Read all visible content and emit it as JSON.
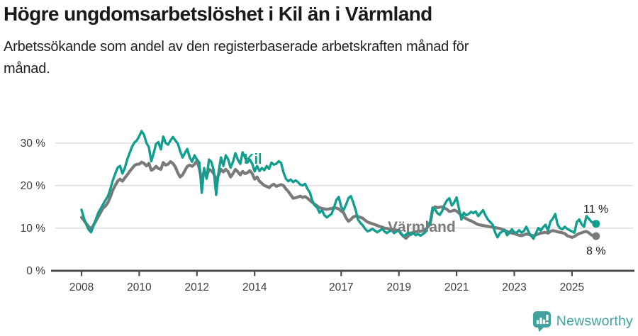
{
  "header": {
    "title": "Högre ungdomsarbetslöshet i Kil än i Värmland",
    "subtitle_lines": [
      "Arbetssökande som andel av den registerbaserade arbetskraften månad för",
      "månad."
    ]
  },
  "colors": {
    "kil": "#129e8f",
    "varmland": "#7a7a7a",
    "grid": "#d9d9d9",
    "axis": "#4d4d4d",
    "axis_text": "#3d3d3d",
    "end_label_text": "#1a1a1a",
    "brand": "#41a39e"
  },
  "chart_data": {
    "type": "line",
    "title": "Högre ungdomsarbetslöshet i Kil än i Värmland",
    "subtitle": "Arbetssökande som andel av den registerbaserade arbetskraften månad för månad.",
    "x_unit": "month",
    "x_start_year": 2008,
    "x_end": "2025-11",
    "x_ticks": [
      2008,
      2010,
      2012,
      2014,
      2017,
      2019,
      2021,
      2023,
      2025
    ],
    "y_ticks": [
      0,
      10,
      20,
      30
    ],
    "y_tick_suffix": " %",
    "ylim": [
      0,
      34
    ],
    "grid": "horizontal",
    "legend_position": "inline-labels",
    "series": [
      {
        "name": "Kil",
        "color": "#129e8f",
        "end_label": "11 %",
        "end_value": 11,
        "values": [
          14.3,
          12.3,
          10.8,
          9.6,
          9.0,
          10.6,
          12.1,
          13.6,
          14.6,
          15.6,
          16.6,
          17.5,
          19.2,
          21.2,
          22.7,
          24.2,
          24.6,
          22.8,
          24.1,
          26.1,
          27.6,
          29.1,
          30.1,
          30.6,
          31.6,
          32.8,
          31.9,
          30.0,
          29.0,
          25.7,
          27.6,
          29.8,
          30.2,
          28.5,
          31.5,
          30.0,
          29.6,
          30.6,
          31.4,
          30.6,
          29.9,
          28.1,
          26.6,
          27.6,
          28.6,
          26.6,
          25.6,
          27.1,
          26.1,
          25.4,
          18.3,
          24.1,
          21.6,
          26.1,
          25.6,
          23.6,
          17.8,
          23.1,
          26.6,
          24.6,
          27.1,
          26.1,
          24.2,
          25.6,
          27.6,
          26.1,
          25.1,
          27.8,
          26.6,
          25.4,
          26.1,
          25.1,
          23.3,
          24.6,
          23.4,
          24.1,
          23.6,
          24.6,
          23.9,
          25.4,
          24.9,
          25.1,
          25.7,
          25.3,
          23.1,
          21.6,
          21.0,
          21.4,
          20.8,
          21.2,
          20.8,
          20.2,
          20.0,
          20.4,
          19.2,
          18.3,
          16.4,
          15.3,
          14.8,
          13.6,
          14.2,
          13.0,
          12.5,
          12.9,
          13.3,
          14.8,
          16.6,
          17.3,
          15.0,
          14.2,
          15.5,
          17.0,
          17.5,
          16.0,
          14.2,
          12.0,
          11.2,
          10.6,
          9.8,
          9.2,
          9.5,
          9.8,
          9.4,
          9.0,
          9.4,
          9.8,
          9.2,
          8.8,
          9.2,
          9.5,
          8.8,
          9.2,
          9.5,
          8.6,
          8.1,
          8.5,
          9.0,
          8.4,
          8.8,
          8.3,
          8.6,
          8.2,
          8.6,
          9.0,
          10.5,
          11.5,
          14.8,
          14.4,
          13.5,
          13.1,
          14.0,
          15.5,
          16.5,
          17.0,
          15.3,
          16.0,
          17.2,
          14.5,
          12.0,
          13.6,
          13.0,
          13.3,
          13.8,
          13.5,
          13.9,
          12.8,
          13.5,
          14.2,
          13.0,
          12.0,
          11.4,
          10.8,
          9.0,
          7.8,
          8.8,
          9.2,
          9.5,
          8.3,
          8.9,
          9.7,
          9.0,
          8.9,
          9.5,
          8.9,
          9.3,
          10.3,
          9.0,
          8.2,
          7.5,
          8.8,
          10.0,
          9.4,
          10.2,
          10.8,
          9.4,
          11.5,
          12.2,
          13.3,
          10.8,
          10.0,
          9.7,
          10.3,
          9.8,
          9.5,
          9.2,
          8.9,
          11.4,
          12.0,
          10.9,
          10.3,
          12.8,
          12.2,
          11.5,
          11.2,
          11.0
        ]
      },
      {
        "name": "Värmland",
        "color": "#7a7a7a",
        "end_label": "8 %",
        "end_value": 8,
        "values": [
          12.5,
          11.8,
          11.0,
          10.3,
          9.8,
          10.7,
          11.7,
          12.7,
          13.7,
          14.7,
          15.2,
          16.0,
          17.3,
          18.9,
          20.0,
          21.0,
          21.5,
          21.0,
          21.8,
          22.5,
          23.3,
          24.0,
          24.7,
          25.0,
          25.0,
          25.5,
          25.2,
          24.6,
          25.2,
          23.6,
          23.9,
          24.5,
          24.0,
          23.8,
          25.4,
          24.8,
          25.0,
          25.6,
          25.2,
          24.4,
          23.0,
          22.0,
          22.5,
          23.5,
          24.5,
          24.8,
          24.5,
          25.0,
          25.8,
          24.0,
          21.1,
          23.5,
          22.0,
          23.8,
          23.5,
          22.8,
          21.2,
          22.5,
          23.8,
          23.2,
          23.8,
          23.2,
          22.0,
          22.8,
          23.8,
          23.2,
          22.5,
          23.3,
          22.8,
          23.0,
          23.5,
          22.8,
          21.5,
          22.0,
          21.0,
          20.5,
          20.0,
          19.8,
          19.5,
          20.0,
          20.3,
          19.8,
          20.0,
          20.2,
          20.0,
          19.2,
          18.6,
          17.8,
          17.0,
          17.1,
          17.3,
          17.5,
          17.2,
          17.4,
          17.0,
          16.5,
          16.0,
          15.6,
          15.2,
          14.8,
          14.6,
          14.5,
          14.4,
          14.5,
          14.6,
          14.8,
          14.7,
          14.5,
          14.0,
          13.6,
          12.4,
          11.6,
          12.0,
          12.6,
          12.8,
          12.7,
          12.5,
          12.3,
          11.8,
          11.4,
          11.2,
          11.0,
          10.8,
          10.6,
          10.4,
          10.2,
          10.0,
          9.9,
          9.8,
          9.7,
          9.6,
          9.5,
          9.4,
          8.6,
          8.0,
          7.6,
          8.2,
          8.8,
          9.0,
          9.1,
          9.3,
          9.2,
          9.4,
          9.6,
          10.2,
          11.0,
          14.2,
          15.0,
          14.8,
          14.9,
          15.0,
          14.7,
          14.4,
          13.9,
          14.0,
          14.2,
          14.0,
          13.5,
          13.0,
          12.5,
          12.2,
          11.9,
          11.7,
          11.4,
          11.1,
          10.8,
          10.7,
          10.6,
          10.5,
          10.4,
          10.3,
          10.2,
          10.1,
          10.0,
          9.9,
          9.7,
          9.5,
          9.2,
          9.0,
          8.8,
          8.7,
          8.5,
          8.3,
          8.2,
          8.4,
          8.6,
          8.5,
          8.3,
          8.2,
          8.4,
          8.6,
          8.8,
          8.9,
          9.0,
          8.8,
          9.2,
          9.4,
          9.3,
          9.1,
          9.0,
          8.9,
          8.7,
          8.2,
          8.0,
          7.8,
          8.0,
          8.4,
          8.7,
          8.9,
          9.1,
          9.2,
          8.9,
          8.4,
          8.2,
          8.1
        ]
      }
    ]
  },
  "footer": {
    "brand": "Newsworthy"
  }
}
